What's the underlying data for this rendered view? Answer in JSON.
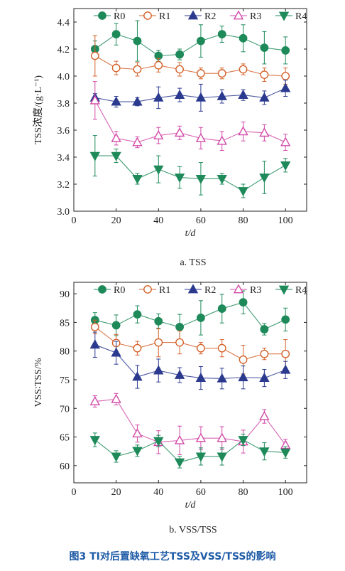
{
  "figure_caption": "图3 TI对后置缺氧工艺TSS及VSS/TSS的影响",
  "colors": {
    "R0": "#1e8a5a",
    "R1": "#d4622a",
    "R2": "#2b3a8f",
    "R3": "#d24aa8",
    "R4": "#1e8a5a",
    "axis": "#222222"
  },
  "chart_data": [
    {
      "type": "line",
      "panel_label": "a. TSS",
      "xlabel": "t/d",
      "ylabel": "TSS浓度/(g·L⁻¹)",
      "xlim": [
        0,
        110
      ],
      "ylim": [
        3.0,
        4.5
      ],
      "xticks": [
        0,
        20,
        40,
        60,
        80,
        100
      ],
      "yticks": [
        3.0,
        3.2,
        3.4,
        3.6,
        3.8,
        4.0,
        4.2,
        4.4
      ],
      "ytick_decimals": 1,
      "legend": [
        "R0",
        "R1",
        "R2",
        "R3",
        "R4"
      ],
      "legend_position": "top",
      "x": [
        10,
        20,
        30,
        40,
        50,
        60,
        70,
        80,
        90,
        100
      ],
      "series": [
        {
          "name": "R0",
          "marker": "filled-circle",
          "values": [
            4.2,
            4.31,
            4.26,
            4.15,
            4.16,
            4.26,
            4.31,
            4.28,
            4.21,
            4.19
          ],
          "errors": [
            0.06,
            0.08,
            0.15,
            0.04,
            0.04,
            0.12,
            0.06,
            0.1,
            0.12,
            0.1
          ]
        },
        {
          "name": "R1",
          "marker": "open-circle",
          "values": [
            4.15,
            4.06,
            4.05,
            4.08,
            4.05,
            4.02,
            4.02,
            4.05,
            4.01,
            4.0
          ],
          "errors": [
            0.15,
            0.05,
            0.05,
            0.05,
            0.05,
            0.04,
            0.04,
            0.04,
            0.05,
            0.06
          ]
        },
        {
          "name": "R2",
          "marker": "filled-triangle-up",
          "values": [
            3.84,
            3.81,
            3.81,
            3.84,
            3.86,
            3.84,
            3.85,
            3.86,
            3.84,
            3.91
          ],
          "errors": [
            0.03,
            0.04,
            0.03,
            0.08,
            0.05,
            0.1,
            0.05,
            0.04,
            0.05,
            0.06
          ]
        },
        {
          "name": "R3",
          "marker": "open-triangle-up",
          "values": [
            3.82,
            3.54,
            3.51,
            3.56,
            3.58,
            3.54,
            3.52,
            3.59,
            3.58,
            3.51
          ],
          "errors": [
            0.14,
            0.05,
            0.04,
            0.06,
            0.05,
            0.08,
            0.07,
            0.07,
            0.06,
            0.06
          ]
        },
        {
          "name": "R4",
          "marker": "filled-triangle-down",
          "values": [
            3.41,
            3.41,
            3.24,
            3.31,
            3.25,
            3.24,
            3.24,
            3.15,
            3.25,
            3.34
          ],
          "errors": [
            0.15,
            0.05,
            0.04,
            0.1,
            0.08,
            0.12,
            0.04,
            0.05,
            0.12,
            0.05
          ]
        }
      ]
    },
    {
      "type": "line",
      "panel_label": "b. VSS/TSS",
      "xlabel": "t/d",
      "ylabel": "VSS∶TSS/%",
      "xlim": [
        0,
        110
      ],
      "ylim": [
        57,
        92
      ],
      "xticks": [
        0,
        20,
        40,
        60,
        80,
        100
      ],
      "yticks": [
        60,
        65,
        70,
        75,
        80,
        85,
        90
      ],
      "ytick_decimals": 0,
      "legend": [
        "R0",
        "R1",
        "R2",
        "R3",
        "R4"
      ],
      "legend_position": "top",
      "x": [
        10,
        20,
        30,
        40,
        50,
        60,
        70,
        80,
        90,
        100
      ],
      "series": [
        {
          "name": "R0",
          "marker": "filled-circle",
          "values": [
            85.4,
            84.5,
            86.4,
            85.2,
            84.2,
            85.8,
            87.4,
            88.5,
            83.8,
            85.5
          ],
          "errors": [
            1.3,
            1.8,
            1.5,
            1.3,
            2.2,
            3.0,
            2.5,
            2.0,
            1.0,
            2.0
          ]
        },
        {
          "name": "R1",
          "marker": "open-circle",
          "values": [
            84.2,
            81.4,
            80.5,
            81.5,
            81.5,
            80.5,
            80.5,
            78.5,
            79.5,
            79.5
          ],
          "errors": [
            1.2,
            1.5,
            1.2,
            2.5,
            2.0,
            1.0,
            1.5,
            2.5,
            1.0,
            2.5
          ]
        },
        {
          "name": "R2",
          "marker": "filled-triangle-up",
          "values": [
            81.1,
            79.7,
            75.5,
            76.6,
            75.8,
            75.3,
            75.2,
            75.4,
            75.3,
            76.7
          ],
          "errors": [
            2.2,
            2.0,
            2.0,
            2.0,
            1.3,
            2.0,
            1.8,
            2.0,
            1.5,
            1.5
          ]
        },
        {
          "name": "R3",
          "marker": "open-triangle-up",
          "values": [
            71.2,
            71.6,
            65.6,
            64.1,
            64.4,
            64.8,
            64.8,
            64.2,
            68.6,
            63.6
          ],
          "errors": [
            1.0,
            1.0,
            1.5,
            2.0,
            2.5,
            2.0,
            2.0,
            2.0,
            1.2,
            1.0
          ]
        },
        {
          "name": "R4",
          "marker": "filled-triangle-down",
          "values": [
            64.5,
            61.6,
            62.6,
            64.3,
            60.6,
            61.6,
            61.6,
            64.5,
            62.5,
            62.3
          ],
          "errors": [
            1.2,
            1.0,
            1.0,
            1.0,
            1.0,
            1.5,
            1.5,
            1.0,
            1.5,
            1.0
          ]
        }
      ]
    }
  ]
}
